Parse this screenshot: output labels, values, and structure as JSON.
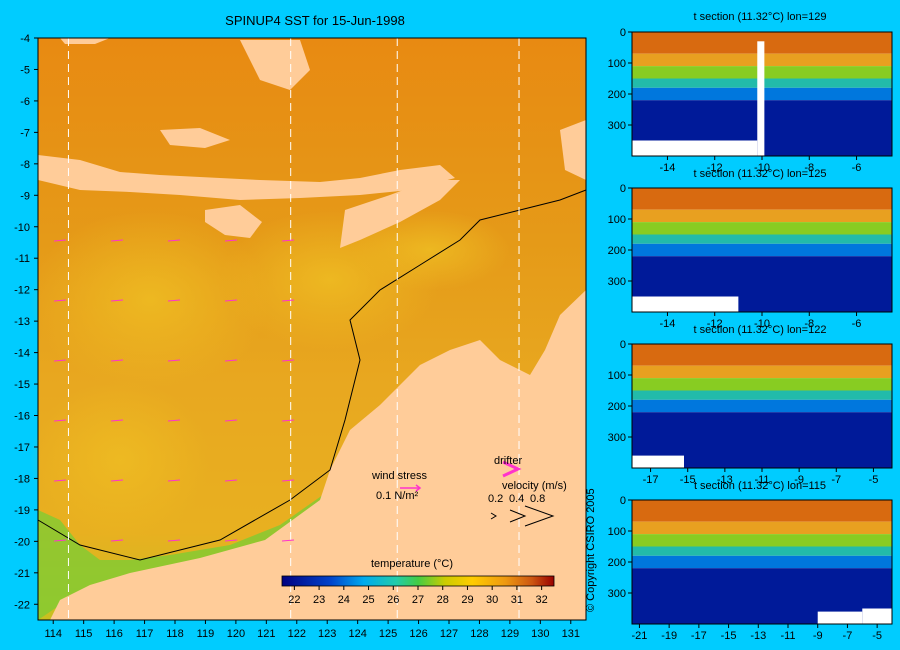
{
  "title": "SPINUP4 SST for 15-Jun-1998",
  "copyright": "© Copyright CSIRO 2005",
  "colors": {
    "background": "#00ccff",
    "land": "#ffcc99",
    "missing": "#ffffff",
    "arrow": "#ff33cc"
  },
  "legend": {
    "temperature_label": "temperature (°C)",
    "wind_stress_label": "wind stress",
    "wind_stress_value": "0.1 N/m²",
    "drifter_label": "drifter",
    "velocity_label": "velocity (m/s)",
    "velocity_ticks": [
      "0.2",
      "0.4",
      "0.8"
    ]
  },
  "chart_data": [
    {
      "type": "heatmap",
      "title": "SPINUP4 SST for 15-Jun-1998",
      "xlabel": "",
      "ylabel": "",
      "xlim": [
        113.5,
        131.5
      ],
      "ylim": [
        -22.5,
        -4
      ],
      "x_ticks": [
        114,
        115,
        116,
        117,
        118,
        119,
        120,
        121,
        122,
        123,
        124,
        125,
        126,
        127,
        128,
        129,
        130,
        131
      ],
      "y_ticks": [
        -4,
        -5,
        -6,
        -7,
        -8,
        -9,
        -10,
        -11,
        -12,
        -13,
        -14,
        -15,
        -16,
        -17,
        -18,
        -19,
        -20,
        -21,
        -22
      ],
      "colorbar": {
        "label": "temperature (°C)",
        "ticks": [
          22,
          23,
          24,
          25,
          26,
          27,
          28,
          29,
          30,
          31,
          32
        ],
        "range": [
          21.5,
          32.5
        ]
      },
      "section_longitudes": [
        114.5,
        121.8,
        125.3,
        129.3
      ]
    },
    {
      "type": "heatmap",
      "title": "t section (11.32°C) lon=129",
      "x_ticks": [
        -14,
        -12,
        -10,
        -8,
        -6
      ],
      "xlim": [
        -15.5,
        -4.5
      ],
      "y_ticks": [
        0,
        100,
        200,
        300
      ],
      "ylim": [
        0,
        400
      ]
    },
    {
      "type": "heatmap",
      "title": "t section (11.32°C) lon=125",
      "x_ticks": [
        -14,
        -12,
        -10,
        -8,
        -6
      ],
      "xlim": [
        -15.5,
        -4.5
      ],
      "y_ticks": [
        0,
        100,
        200,
        300
      ],
      "ylim": [
        0,
        400
      ]
    },
    {
      "type": "heatmap",
      "title": "t section (11.32°C) lon=122",
      "x_ticks": [
        -17,
        -15,
        -13,
        -11,
        -9,
        -7,
        -5
      ],
      "xlim": [
        -18,
        -4
      ],
      "y_ticks": [
        0,
        100,
        200,
        300
      ],
      "ylim": [
        0,
        400
      ]
    },
    {
      "type": "heatmap",
      "title": "t section (11.32°C) lon=115",
      "x_ticks": [
        -21,
        -19,
        -17,
        -15,
        -13,
        -11,
        -9,
        -7,
        -5
      ],
      "xlim": [
        -21.5,
        -4
      ],
      "y_ticks": [
        0,
        100,
        200,
        300
      ],
      "ylim": [
        0,
        400
      ]
    }
  ]
}
